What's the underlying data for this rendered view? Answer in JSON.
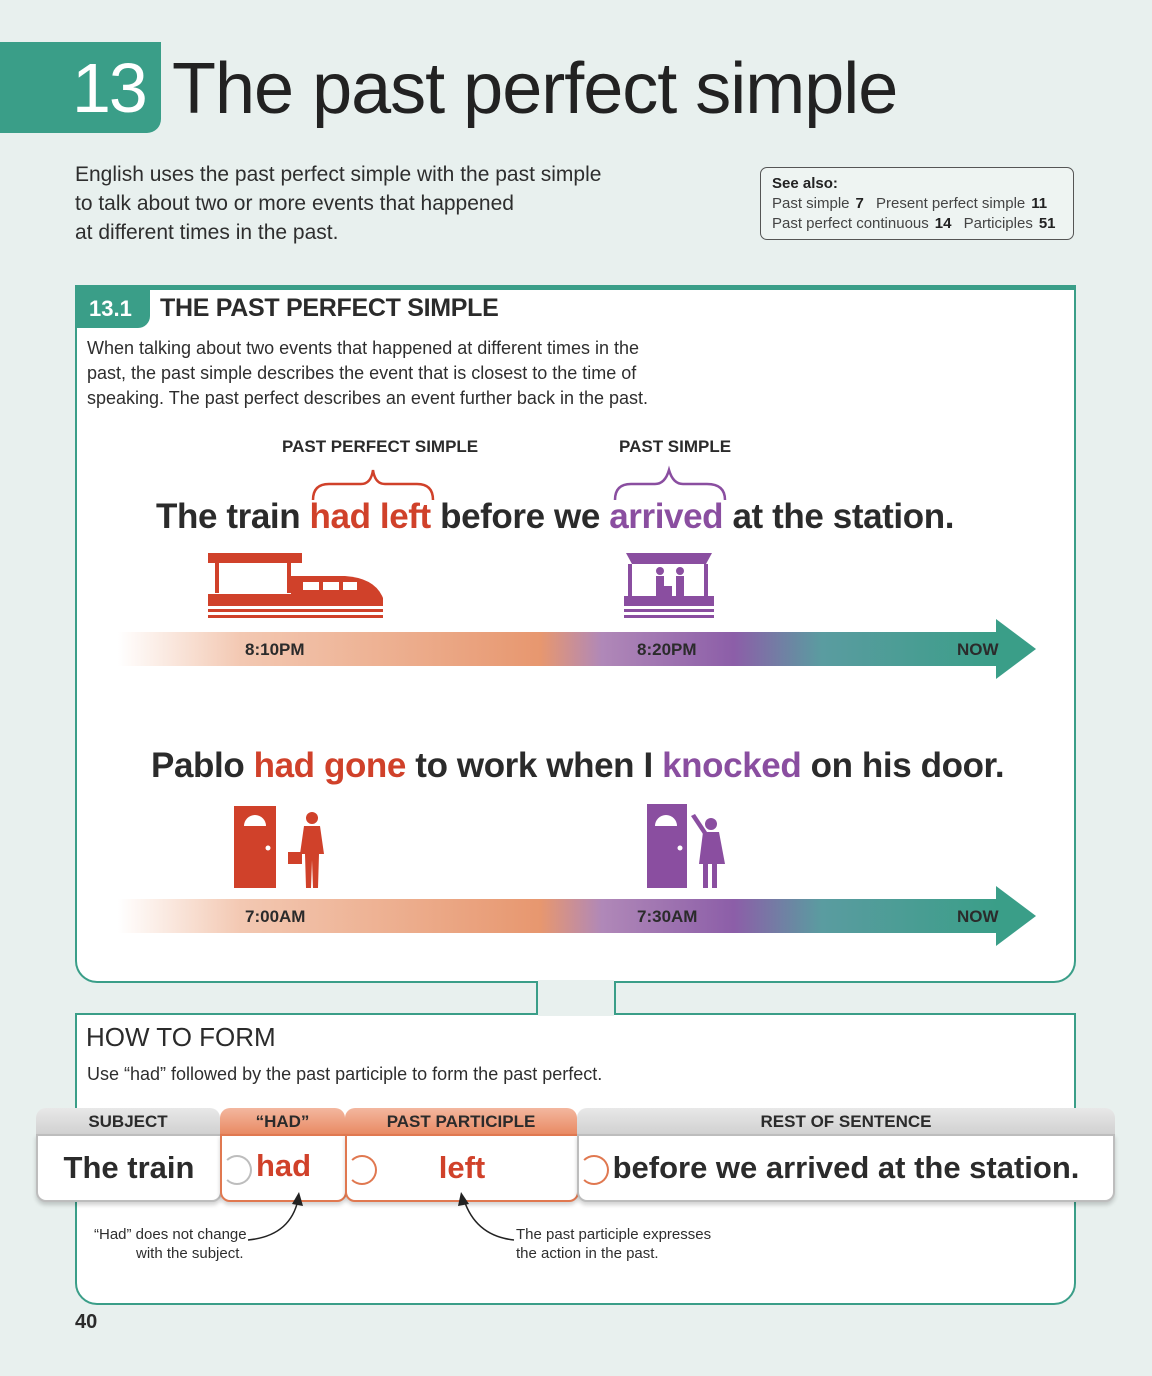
{
  "header": {
    "unit_number": "13",
    "title": "The past perfect simple"
  },
  "intro": [
    "English uses the past perfect simple with the past simple",
    "to talk about two or more events that happened",
    "at different times in the past."
  ],
  "see_also": {
    "heading": "See also:",
    "items": [
      {
        "label": "Past simple",
        "number": "7"
      },
      {
        "label": "Present perfect simple",
        "number": "11"
      },
      {
        "label": "Past perfect continuous",
        "number": "14"
      },
      {
        "label": "Participles",
        "number": "51"
      }
    ]
  },
  "section": {
    "number": "13.1",
    "title": "THE PAST PERFECT SIMPLE",
    "text": [
      "When talking about two events that happened at different times in the",
      "past, the past simple describes the event that is closest to the time of",
      "speaking. The past perfect describes an event further back in the past."
    ],
    "label_past_perfect": "PAST PERFECT SIMPLE",
    "label_past_simple": "PAST SIMPLE",
    "example1": {
      "p1": "The train ",
      "highlight1": "had left",
      "p2": " before we ",
      "highlight2": "arrived",
      "p3": " at the station.",
      "time1": "8:10PM",
      "time2": "8:20PM",
      "time3": "NOW"
    },
    "example2": {
      "p1": "Pablo ",
      "highlight1": "had gone",
      "p2": " to work when I ",
      "highlight2": "knocked",
      "p3": " on his door.",
      "time1": "7:00AM",
      "time2": "7:30AM",
      "time3": "NOW"
    }
  },
  "how_to_form": {
    "title": "HOW TO FORM",
    "text": "Use “had” followed by the past participle to form the past perfect.",
    "pieces": [
      {
        "header": "SUBJECT",
        "value": "The train"
      },
      {
        "header": "“HAD”",
        "value": "had"
      },
      {
        "header": "PAST PARTICIPLE",
        "value": "left"
      },
      {
        "header": "REST OF SENTENCE",
        "value": "before we arrived at the station."
      }
    ],
    "note1": [
      "“Had” does not change",
      "with the subject."
    ],
    "note2": [
      "The past participle expresses",
      "the action in the past."
    ]
  },
  "page_number": "40",
  "colors": {
    "teal": "#3a9e88",
    "red": "#d0412a",
    "purple": "#8a4ea0"
  }
}
